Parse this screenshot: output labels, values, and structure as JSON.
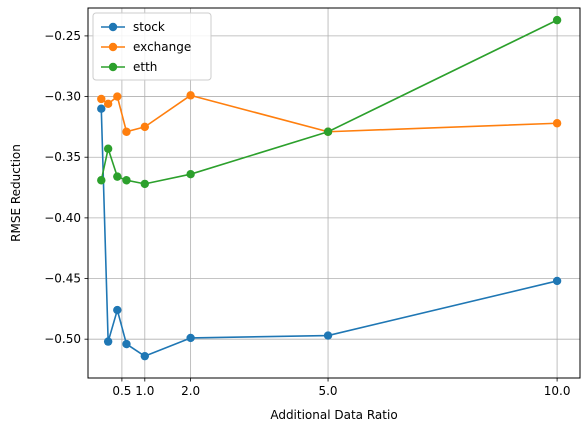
{
  "chart_data": {
    "type": "line",
    "xlabel": "Additional Data Ratio",
    "ylabel": "RMSE Reduction",
    "xlim": [
      -0.24,
      10.5
    ],
    "ylim": [
      -0.532,
      -0.227
    ],
    "xticks": [
      0.5,
      1.0,
      2.0,
      5.0,
      10.0
    ],
    "xtick_labels": [
      "0.5",
      "1.0",
      "2.0",
      "5.0",
      "10.0"
    ],
    "yticks": [
      -0.5,
      -0.45,
      -0.4,
      -0.35,
      -0.3,
      -0.25
    ],
    "ytick_labels": [
      "−0.50",
      "−0.45",
      "−0.40",
      "−0.35",
      "−0.30",
      "−0.25"
    ],
    "grid": true,
    "legend_position": "top-left",
    "x": [
      0.05,
      0.25,
      0.45,
      0.65,
      0.75,
      1.0,
      2.0,
      5.0,
      10.0
    ],
    "series": [
      {
        "name": "stock",
        "color": "#1f77b4",
        "x": [
          0.05,
          0.2,
          0.4,
          0.6,
          1.0,
          2.0,
          5.0,
          10.0
        ],
        "values": [
          -0.31,
          -0.502,
          -0.476,
          -0.504,
          -0.514,
          -0.499,
          -0.497,
          -0.452
        ]
      },
      {
        "name": "exchange",
        "color": "#ff7f0e",
        "x": [
          0.05,
          0.2,
          0.4,
          0.6,
          1.0,
          2.0,
          5.0,
          10.0
        ],
        "values": [
          -0.302,
          -0.306,
          -0.3,
          -0.329,
          -0.325,
          -0.299,
          -0.329,
          -0.322
        ]
      },
      {
        "name": "etth",
        "color": "#2ca02c",
        "x": [
          0.05,
          0.2,
          0.4,
          0.6,
          1.0,
          2.0,
          5.0,
          10.0
        ],
        "values": [
          -0.369,
          -0.343,
          -0.366,
          -0.369,
          -0.372,
          -0.364,
          -0.329,
          -0.237
        ]
      }
    ]
  }
}
